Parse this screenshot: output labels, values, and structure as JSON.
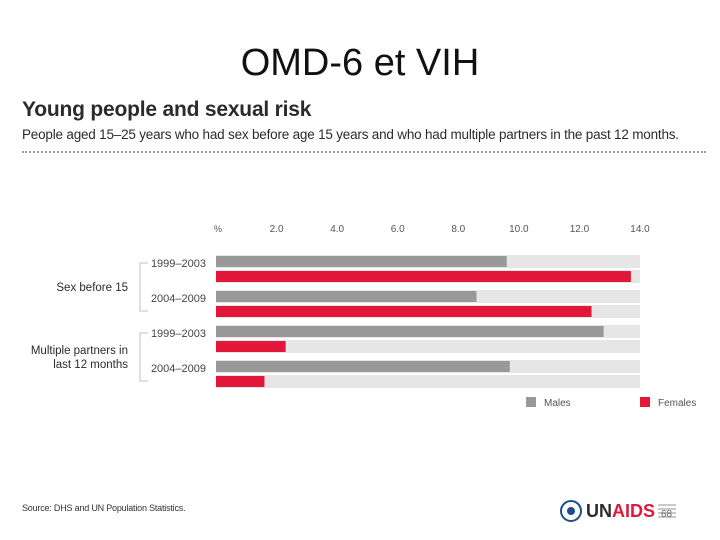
{
  "slide": {
    "title": "OMD-6 et VIH",
    "page_number": "68"
  },
  "footer": {
    "source": "Source: DHS and UN Population Statistics.",
    "logo_text_main": "UN",
    "logo_text_accent": "AIDS"
  },
  "colors": {
    "males": "#999999",
    "females": "#e3173a",
    "track": "#e6e6e6",
    "tick_text": "#555555"
  },
  "chart_data": {
    "type": "bar",
    "orientation": "horizontal",
    "title": "Young people and sexual risk",
    "subtitle": "People aged 15–25 years who had sex before age 15 years and who had multiple partners in the past 12 months.",
    "x_unit_label": "%",
    "x_ticks": [
      "2.0",
      "4.0",
      "6.0",
      "8.0",
      "10.0",
      "12.0",
      "14.0"
    ],
    "xlim": [
      0,
      14.0
    ],
    "groups": [
      {
        "label": "Sex before 15",
        "rows": [
          {
            "period": "1999–2003",
            "Males": 9.6,
            "Females": 13.7
          },
          {
            "period": "2004–2009",
            "Males": 8.6,
            "Females": 12.4
          }
        ]
      },
      {
        "label": "Multiple partners in last 12 months",
        "rows": [
          {
            "period": "1999–2003",
            "Males": 12.8,
            "Females": 2.3
          },
          {
            "period": "2004–2009",
            "Males": 9.7,
            "Females": 1.6
          }
        ]
      }
    ],
    "series": [
      {
        "name": "Males",
        "color": "#999999"
      },
      {
        "name": "Females",
        "color": "#e3173a"
      }
    ],
    "legend_position": "bottom-right"
  }
}
